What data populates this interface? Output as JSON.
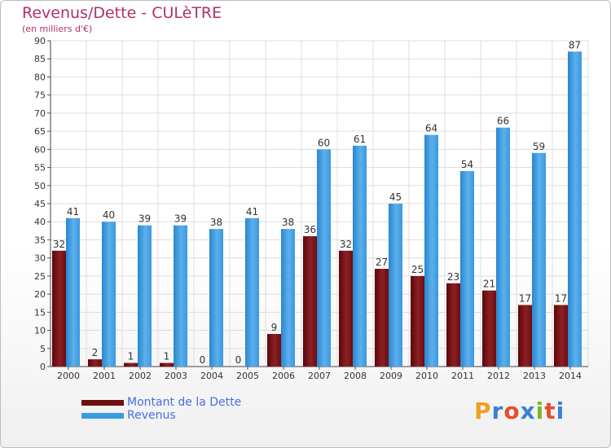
{
  "header": {
    "title": "Revenus/Dette - CULèTRE",
    "subtitle": "(en milliers d'€)"
  },
  "chart_data": {
    "type": "bar",
    "title": "Revenus/Dette - CULèTRE",
    "ylabel": "(en milliers d'€)",
    "xlabel": "",
    "ylim": [
      0,
      90
    ],
    "yticks": [
      0,
      5,
      10,
      15,
      20,
      25,
      30,
      35,
      40,
      45,
      50,
      55,
      60,
      65,
      70,
      75,
      80,
      85,
      90
    ],
    "grid": true,
    "categories": [
      "2000",
      "2001",
      "2002",
      "2003",
      "2004",
      "2005",
      "2006",
      "2007",
      "2008",
      "2009",
      "2010",
      "2011",
      "2012",
      "2013",
      "2014"
    ],
    "series": [
      {
        "name": "Montant de la Dette",
        "color": "#7a1418",
        "values": [
          32,
          2,
          1,
          1,
          0,
          0,
          9,
          36,
          32,
          27,
          25,
          23,
          21,
          17,
          17
        ]
      },
      {
        "name": "Revenus",
        "color": "#3a9be3",
        "values": [
          41,
          40,
          39,
          39,
          38,
          41,
          38,
          60,
          61,
          45,
          64,
          54,
          66,
          59,
          87
        ]
      }
    ]
  },
  "legend": {
    "items": [
      {
        "label": "Montant de la Dette",
        "color": "#6e0f12"
      },
      {
        "label": "Revenus",
        "color": "#3a9be3"
      }
    ]
  },
  "logo": {
    "letters": [
      "P",
      "r",
      "o",
      "x",
      "i",
      "t",
      "i"
    ],
    "colors": [
      "#f0a020",
      "#3a7fd9",
      "#e5502b",
      "#3a7fd9",
      "#78b82a",
      "#e5502b",
      "#3a7fd9"
    ]
  }
}
